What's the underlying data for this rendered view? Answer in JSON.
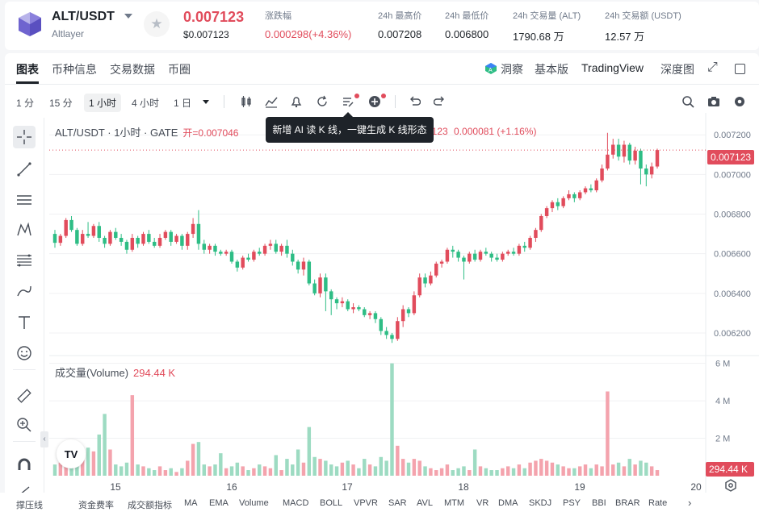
{
  "header": {
    "pair": "ALT/USDT",
    "subname": "Altlayer",
    "price": "0.007123",
    "price_usd": "$0.007123",
    "stats": [
      {
        "label": "涨跌幅",
        "value": "0.000298(+4.36%)",
        "red": true
      },
      {
        "label": "24h 最高价",
        "value": "0.007208",
        "red": false
      },
      {
        "label": "24h 最低价",
        "value": "0.006800",
        "red": false
      },
      {
        "label": "24h 交易量 (ALT)",
        "value": "1790.68 万",
        "red": false
      },
      {
        "label": "24h 交易额 (USDT)",
        "value": "12.57 万",
        "red": false
      }
    ]
  },
  "tabs": [
    "图表",
    "币种信息",
    "交易数据",
    "币圈"
  ],
  "right_tabs": {
    "insight": "洞察",
    "basic": "基本版",
    "tradingview": "TradingView",
    "depth": "深度图"
  },
  "timeframes": [
    "1 分",
    "15 分",
    "1 小时",
    "4 小时",
    "1 日"
  ],
  "legend": {
    "title": "ALT/USDT · 1小时 · GATE",
    "open": "开=0.007046",
    "change_tail": "7123",
    "change": "0.000081 (+1.16%)"
  },
  "tooltip": "新增 AI 读 K 线，一键生成 K 线形态",
  "volume_legend": {
    "label": "成交量(Volume)",
    "value": "294.44 K"
  },
  "price_tag": "0.007123",
  "volume_tag": "294.44 K",
  "tv_logo": "TV",
  "indicators": [
    "撑压线",
    "资金费率",
    "成交额指标",
    "MA",
    "EMA",
    "Volume",
    "MACD",
    "BOLL",
    "VPVR",
    "SAR",
    "AVL",
    "MTM",
    "VR",
    "DMA",
    "SKDJ",
    "PSY",
    "BBI",
    "BRAR",
    "Rate"
  ],
  "colors": {
    "up": "#e14c5c",
    "down": "#2ebd85",
    "up_vol": "#f4a3ad",
    "down_vol": "#9ddbc2"
  },
  "chart_data": {
    "type": "candlestick",
    "price_axis": {
      "ticks": [
        "0.007200",
        "0.007000",
        "0.006800",
        "0.006600",
        "0.006400",
        "0.006200"
      ],
      "range": [
        0.00609,
        0.00727
      ]
    },
    "volume_axis": {
      "ticks": [
        "6 M",
        "4 M",
        "2 M"
      ],
      "range": [
        0,
        6.2
      ]
    },
    "x_ticks": [
      "15",
      "16",
      "17",
      "18",
      "19",
      "20"
    ],
    "current_price": 0.007123,
    "candles": [
      [
        0.0067,
        0.006655,
        0.00672,
        0.00663,
        0.6
      ],
      [
        0.006655,
        0.00669,
        0.0067,
        0.00664,
        0.7
      ],
      [
        0.00669,
        0.00677,
        0.00678,
        0.00668,
        1.2
      ],
      [
        0.00677,
        0.00672,
        0.00679,
        0.00671,
        0.9
      ],
      [
        0.00672,
        0.00665,
        0.00673,
        0.00664,
        0.8
      ],
      [
        0.00665,
        0.0067,
        0.00672,
        0.00664,
        1.1
      ],
      [
        0.0067,
        0.00669,
        0.00676,
        0.00668,
        1.5
      ],
      [
        0.00669,
        0.00674,
        0.00675,
        0.00668,
        1.3
      ],
      [
        0.00674,
        0.00668,
        0.00676,
        0.00666,
        2.2
      ],
      [
        0.00668,
        0.00665,
        0.00669,
        0.00663,
        3.3
      ],
      [
        0.00665,
        0.00671,
        0.00672,
        0.00664,
        1.4
      ],
      [
        0.00671,
        0.00668,
        0.00673,
        0.00667,
        0.6
      ],
      [
        0.00668,
        0.00666,
        0.0067,
        0.00664,
        0.5
      ],
      [
        0.00666,
        0.00662,
        0.00667,
        0.0066,
        0.7
      ],
      [
        0.00662,
        0.00668,
        0.0067,
        0.00661,
        4.3
      ],
      [
        0.00668,
        0.00665,
        0.00669,
        0.00663,
        0.6
      ],
      [
        0.00665,
        0.0067,
        0.00671,
        0.00664,
        0.5
      ],
      [
        0.0067,
        0.00666,
        0.00672,
        0.00665,
        0.4
      ],
      [
        0.00666,
        0.00664,
        0.00668,
        0.00663,
        0.3
      ],
      [
        0.00664,
        0.00668,
        0.0067,
        0.00663,
        0.5
      ],
      [
        0.00668,
        0.00671,
        0.00672,
        0.00667,
        0.3
      ],
      [
        0.00671,
        0.00666,
        0.00672,
        0.00664,
        0.4
      ],
      [
        0.00666,
        0.00669,
        0.0067,
        0.00665,
        0.2
      ],
      [
        0.00669,
        0.00664,
        0.0067,
        0.00662,
        0.4
      ],
      [
        0.00664,
        0.0067,
        0.00671,
        0.00662,
        0.8
      ],
      [
        0.0067,
        0.00675,
        0.00678,
        0.00668,
        1.7
      ],
      [
        0.00675,
        0.00665,
        0.00682,
        0.00662,
        1.8
      ],
      [
        0.00665,
        0.00662,
        0.00667,
        0.0066,
        0.6
      ],
      [
        0.00662,
        0.00664,
        0.00665,
        0.0066,
        0.5
      ],
      [
        0.00664,
        0.00661,
        0.00665,
        0.00659,
        0.6
      ],
      [
        0.00661,
        0.0066,
        0.00662,
        0.00659,
        1.2
      ],
      [
        0.0066,
        0.00661,
        0.00662,
        0.00659,
        0.4
      ],
      [
        0.00661,
        0.00656,
        0.00662,
        0.00655,
        0.5
      ],
      [
        0.00656,
        0.00653,
        0.00657,
        0.00651,
        0.7
      ],
      [
        0.00653,
        0.00658,
        0.00659,
        0.00652,
        0.5
      ],
      [
        0.00658,
        0.00657,
        0.0066,
        0.00656,
        0.3
      ],
      [
        0.00657,
        0.00661,
        0.00662,
        0.00656,
        0.4
      ],
      [
        0.00661,
        0.0066,
        0.00663,
        0.00659,
        0.6
      ],
      [
        0.0066,
        0.00664,
        0.00665,
        0.00659,
        0.5
      ],
      [
        0.00664,
        0.00665,
        0.00667,
        0.00662,
        0.4
      ],
      [
        0.00665,
        0.00661,
        0.00667,
        0.0066,
        1.1
      ],
      [
        0.00661,
        0.00664,
        0.00665,
        0.00659,
        0.3
      ],
      [
        0.00664,
        0.0066,
        0.00667,
        0.00658,
        0.9
      ],
      [
        0.0066,
        0.00656,
        0.00662,
        0.00654,
        0.6
      ],
      [
        0.00656,
        0.00652,
        0.00657,
        0.0065,
        1.4
      ],
      [
        0.00652,
        0.00656,
        0.00658,
        0.00649,
        0.7
      ],
      [
        0.00656,
        0.00645,
        0.00657,
        0.00644,
        2.6
      ],
      [
        0.00645,
        0.0064,
        0.00647,
        0.00639,
        1.0
      ],
      [
        0.0064,
        0.00648,
        0.0065,
        0.00638,
        0.9
      ],
      [
        0.00648,
        0.00641,
        0.0065,
        0.00631,
        0.8
      ],
      [
        0.00641,
        0.00637,
        0.00642,
        0.00629,
        0.6
      ],
      [
        0.00637,
        0.00635,
        0.00638,
        0.00632,
        0.5
      ],
      [
        0.00635,
        0.00636,
        0.00638,
        0.00633,
        0.7
      ],
      [
        0.00636,
        0.00632,
        0.00637,
        0.00631,
        0.8
      ],
      [
        0.00632,
        0.00633,
        0.00635,
        0.0063,
        0.6
      ],
      [
        0.00633,
        0.00632,
        0.00634,
        0.00631,
        0.4
      ],
      [
        0.00632,
        0.00629,
        0.00633,
        0.00628,
        0.9
      ],
      [
        0.00629,
        0.0063,
        0.00631,
        0.00627,
        0.6
      ],
      [
        0.0063,
        0.00627,
        0.00631,
        0.00625,
        0.5
      ],
      [
        0.00627,
        0.00621,
        0.00628,
        0.00619,
        1.0
      ],
      [
        0.00621,
        0.00619,
        0.00623,
        0.00617,
        0.8
      ],
      [
        0.00619,
        0.00617,
        0.0062,
        0.00615,
        6.0
      ],
      [
        0.00617,
        0.00626,
        0.00628,
        0.00616,
        1.6
      ],
      [
        0.00626,
        0.00632,
        0.00634,
        0.00623,
        0.9
      ],
      [
        0.00632,
        0.0063,
        0.00633,
        0.00628,
        0.7
      ],
      [
        0.0063,
        0.00639,
        0.00641,
        0.00629,
        0.9
      ],
      [
        0.00639,
        0.00648,
        0.0065,
        0.00638,
        0.8
      ],
      [
        0.00648,
        0.00645,
        0.0065,
        0.00643,
        0.5
      ],
      [
        0.00645,
        0.00649,
        0.00651,
        0.00644,
        0.4
      ],
      [
        0.00649,
        0.00655,
        0.00656,
        0.00648,
        0.3
      ],
      [
        0.00655,
        0.00656,
        0.00657,
        0.00653,
        0.4
      ],
      [
        0.00656,
        0.00662,
        0.00663,
        0.00655,
        0.6
      ],
      [
        0.00662,
        0.00661,
        0.00664,
        0.00658,
        0.3
      ],
      [
        0.00661,
        0.00658,
        0.00662,
        0.00656,
        0.4
      ],
      [
        0.00658,
        0.00656,
        0.00659,
        0.00647,
        0.5
      ],
      [
        0.00656,
        0.0066,
        0.00661,
        0.00655,
        0.3
      ],
      [
        0.0066,
        0.00657,
        0.00662,
        0.00656,
        1.4
      ],
      [
        0.00657,
        0.00661,
        0.00662,
        0.00656,
        0.5
      ],
      [
        0.00661,
        0.0066,
        0.00663,
        0.00659,
        0.4
      ],
      [
        0.0066,
        0.00658,
        0.00661,
        0.00656,
        0.3
      ],
      [
        0.00658,
        0.00657,
        0.0066,
        0.00656,
        0.3
      ],
      [
        0.00657,
        0.0066,
        0.00661,
        0.00656,
        0.4
      ],
      [
        0.0066,
        0.00661,
        0.00662,
        0.00659,
        0.5
      ],
      [
        0.00661,
        0.0066,
        0.00663,
        0.00659,
        0.4
      ],
      [
        0.0066,
        0.00664,
        0.00665,
        0.00659,
        0.6
      ],
      [
        0.00664,
        0.00663,
        0.00666,
        0.00661,
        0.4
      ],
      [
        0.00663,
        0.00668,
        0.00669,
        0.00662,
        0.7
      ],
      [
        0.00668,
        0.00672,
        0.00673,
        0.00666,
        0.8
      ],
      [
        0.00672,
        0.00679,
        0.0068,
        0.00671,
        0.9
      ],
      [
        0.00679,
        0.00683,
        0.00684,
        0.00678,
        0.8
      ],
      [
        0.00683,
        0.00686,
        0.00687,
        0.00681,
        0.7
      ],
      [
        0.00686,
        0.00684,
        0.00688,
        0.00682,
        0.6
      ],
      [
        0.00684,
        0.00688,
        0.00689,
        0.00683,
        0.5
      ],
      [
        0.00688,
        0.0069,
        0.00692,
        0.00687,
        0.4
      ],
      [
        0.0069,
        0.00688,
        0.00691,
        0.00686,
        0.4
      ],
      [
        0.00688,
        0.00691,
        0.00692,
        0.00687,
        0.5
      ],
      [
        0.00691,
        0.00693,
        0.00694,
        0.0069,
        0.6
      ],
      [
        0.00693,
        0.00692,
        0.00695,
        0.00691,
        0.4
      ],
      [
        0.00692,
        0.00697,
        0.00698,
        0.00691,
        0.6
      ],
      [
        0.00697,
        0.00703,
        0.00705,
        0.00696,
        0.5
      ],
      [
        0.00703,
        0.0071,
        0.00721,
        0.00702,
        4.5
      ],
      [
        0.0071,
        0.00715,
        0.00718,
        0.00708,
        0.6
      ],
      [
        0.00715,
        0.00709,
        0.00718,
        0.00707,
        0.7
      ],
      [
        0.00709,
        0.00715,
        0.00717,
        0.00706,
        0.5
      ],
      [
        0.00715,
        0.00707,
        0.00716,
        0.00705,
        0.9
      ],
      [
        0.00707,
        0.00712,
        0.00714,
        0.00705,
        0.6
      ],
      [
        0.00712,
        0.00703,
        0.00713,
        0.00695,
        0.8
      ],
      [
        0.00703,
        0.007,
        0.00705,
        0.00694,
        0.7
      ],
      [
        0.007,
        0.00704,
        0.00706,
        0.00698,
        0.5
      ],
      [
        0.00704,
        0.007123,
        0.00713,
        0.00703,
        0.3
      ]
    ]
  }
}
